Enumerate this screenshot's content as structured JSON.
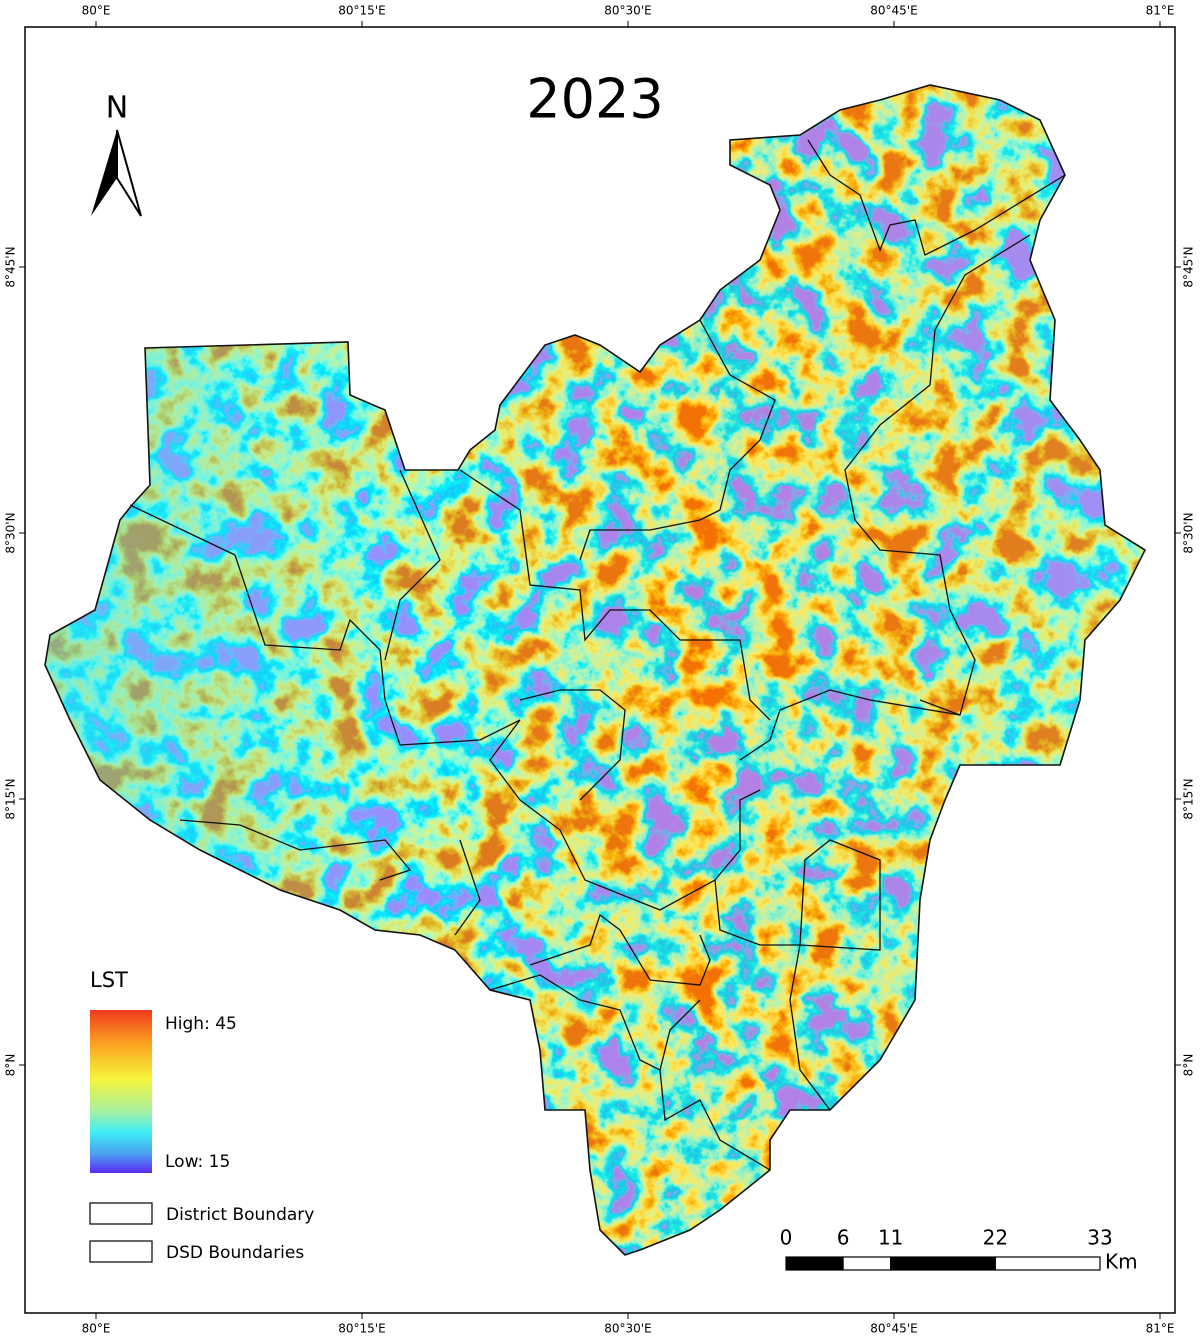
{
  "title": "2023",
  "north": "N",
  "longitude_labels": [
    "80°E",
    "80°15'E",
    "80°30'E",
    "80°45'E",
    "81°E"
  ],
  "latitude_labels": [
    "8°45'N",
    "8°30'N",
    "8°15'N",
    "8°N"
  ],
  "legend": {
    "title": "LST",
    "high": "High: 45",
    "low": "Low: 15",
    "items": [
      "District Boundary",
      "DSD Boundaries"
    ]
  },
  "scale_bar": {
    "ticks": [
      0,
      6,
      11,
      22,
      33
    ],
    "unit": "Km"
  }
}
